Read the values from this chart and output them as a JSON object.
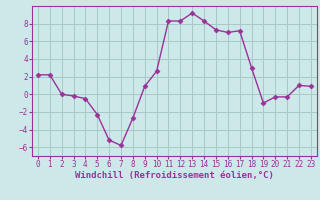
{
  "x": [
    0,
    1,
    2,
    3,
    4,
    5,
    6,
    7,
    8,
    9,
    10,
    11,
    12,
    13,
    14,
    15,
    16,
    17,
    18,
    19,
    20,
    21,
    22,
    23
  ],
  "y": [
    2.2,
    2.2,
    0.0,
    -0.2,
    -0.5,
    -2.3,
    -5.2,
    -5.8,
    -2.7,
    0.9,
    2.6,
    8.3,
    8.3,
    9.2,
    8.3,
    7.3,
    7.0,
    7.2,
    3.0,
    -1.0,
    -0.3,
    -0.3,
    1.0,
    0.9
  ],
  "line_color": "#993399",
  "marker": "D",
  "marker_size": 2.5,
  "line_width": 1.0,
  "bg_color": "#cce8e8",
  "grid_color": "#aac8c8",
  "xlabel": "Windchill (Refroidissement éolien,°C)",
  "xlabel_color": "#993399",
  "ylim": [
    -7,
    10
  ],
  "yticks": [
    -6,
    -4,
    -2,
    0,
    2,
    4,
    6,
    8
  ],
  "xlim": [
    -0.5,
    23.5
  ],
  "xticks": [
    0,
    1,
    2,
    3,
    4,
    5,
    6,
    7,
    8,
    9,
    10,
    11,
    12,
    13,
    14,
    15,
    16,
    17,
    18,
    19,
    20,
    21,
    22,
    23
  ],
  "tick_fontsize": 5.5,
  "label_fontsize": 6.5,
  "spine_color": "#993399"
}
